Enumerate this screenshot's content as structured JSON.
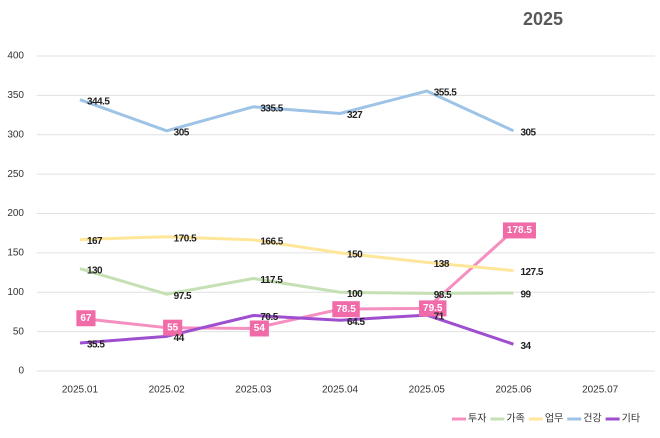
{
  "chart_data": {
    "type": "line",
    "title": "2025",
    "categories": [
      "2025.01",
      "2025.02",
      "2025.03",
      "2025.04",
      "2025.05",
      "2025.06",
      "2025.07"
    ],
    "series": [
      {
        "name": "투자",
        "color": "#f48fc0",
        "values": [
          67,
          55,
          54,
          78.5,
          79.5,
          178.5,
          null
        ]
      },
      {
        "name": "가족",
        "color": "#c5e0b4",
        "values": [
          130,
          97.5,
          117.5,
          100,
          98.5,
          99,
          null
        ]
      },
      {
        "name": "업무",
        "color": "#ffe699",
        "values": [
          167,
          170.5,
          166.5,
          150,
          138,
          127.5,
          null
        ]
      },
      {
        "name": "건강",
        "color": "#9dc3e6",
        "values": [
          344.5,
          305,
          335.5,
          327,
          355.5,
          305,
          null
        ]
      },
      {
        "name": "기타",
        "color": "#9e4fcf",
        "values": [
          35.5,
          44,
          70.5,
          64.5,
          71,
          34,
          null
        ]
      }
    ],
    "ylim": [
      0,
      400
    ],
    "yticks": [
      0,
      50,
      100,
      150,
      200,
      250,
      300,
      350,
      400
    ],
    "grid": true,
    "legend": "bottom-right"
  }
}
